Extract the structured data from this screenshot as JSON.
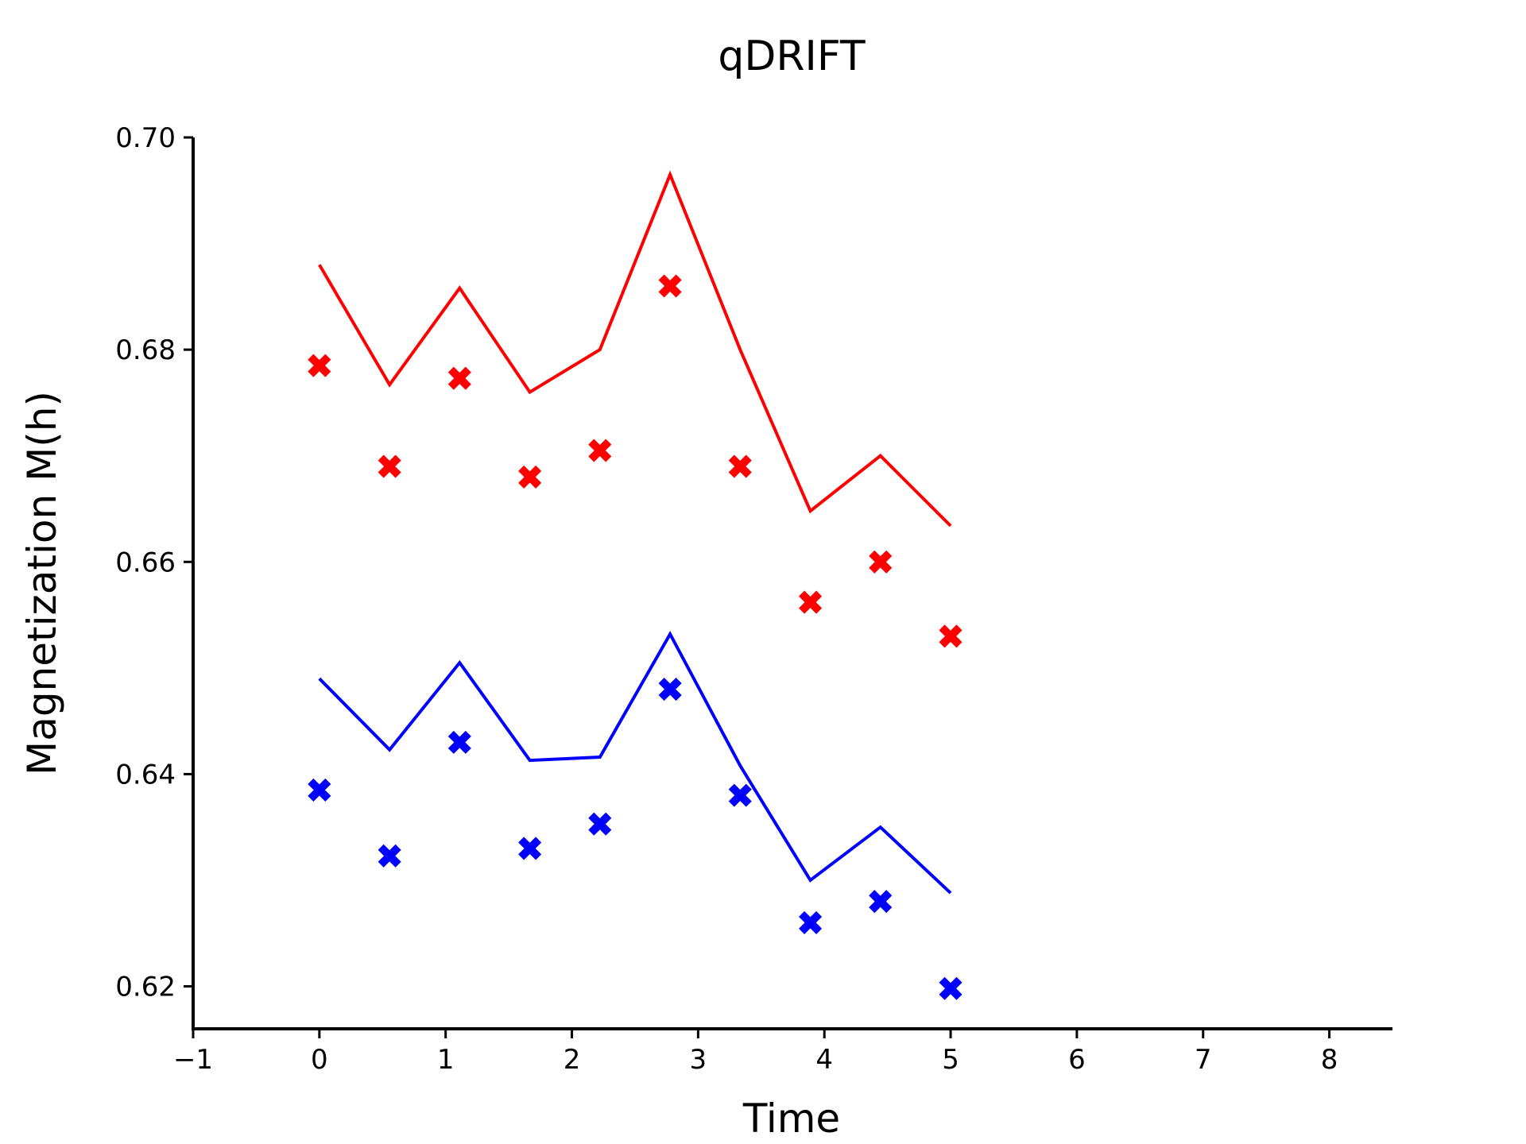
{
  "chart_data": {
    "type": "line",
    "title": "qDRIFT",
    "xlabel": "Time",
    "ylabel": "Magnetization M(h)",
    "xlim": [
      -1,
      8.5
    ],
    "ylim": [
      0.616,
      0.7
    ],
    "xticks": [
      -1,
      0,
      1,
      2,
      3,
      4,
      5,
      6,
      7,
      8
    ],
    "xtick_labels": [
      "−1",
      "0",
      "1",
      "2",
      "3",
      "4",
      "5",
      "6",
      "7",
      "8"
    ],
    "yticks": [
      0.62,
      0.64,
      0.66,
      0.68,
      0.7
    ],
    "ytick_labels": [
      "0.62",
      "0.64",
      "0.66",
      "0.68",
      "0.70"
    ],
    "grid": false,
    "legend": "none",
    "x": [
      0,
      0.556,
      1.111,
      1.667,
      2.222,
      2.778,
      3.333,
      3.889,
      4.444,
      5.0
    ],
    "series": [
      {
        "kind": "line",
        "color": "#ff0000",
        "values": [
          0.688,
          0.6767,
          0.6858,
          0.676,
          0.68,
          0.6965,
          0.68,
          0.6648,
          0.67,
          0.6634
        ]
      },
      {
        "kind": "marker",
        "marker": "X",
        "color": "#ff0000",
        "values": [
          0.6785,
          0.669,
          0.6773,
          0.668,
          0.6705,
          0.686,
          0.669,
          0.6562,
          0.66,
          0.653
        ]
      },
      {
        "kind": "line",
        "color": "#0000ff",
        "values": [
          0.649,
          0.6423,
          0.6505,
          0.6413,
          0.6416,
          0.6532,
          0.6408,
          0.63,
          0.635,
          0.6288
        ]
      },
      {
        "kind": "marker",
        "marker": "X",
        "color": "#0000ff",
        "values": [
          0.6385,
          0.6323,
          0.643,
          0.633,
          0.6353,
          0.648,
          0.638,
          0.626,
          0.628,
          0.6198
        ]
      }
    ]
  }
}
